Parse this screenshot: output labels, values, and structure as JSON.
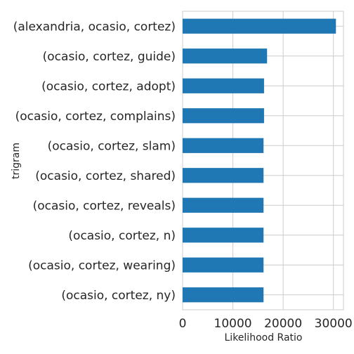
{
  "chart_data": {
    "type": "bar",
    "orientation": "horizontal",
    "categories": [
      "(alexandria, ocasio, cortez)",
      "(ocasio, cortez, guide)",
      "(ocasio, cortez, adopt)",
      "(ocasio, cortez, complains)",
      "(ocasio, cortez, slam)",
      "(ocasio, cortez, shared)",
      "(ocasio, cortez, reveals)",
      "(ocasio, cortez, n)",
      "(ocasio, cortez, wearing)",
      "(ocasio, cortez, ny)"
    ],
    "values": [
      30500,
      16800,
      16200,
      16200,
      16100,
      16100,
      16100,
      16100,
      16100,
      16100
    ],
    "xlabel": "Likelihood Ratio",
    "ylabel": "trigram",
    "xticks": [
      0,
      10000,
      20000,
      30000
    ],
    "xlim": [
      0,
      32000
    ],
    "grid": true,
    "bar_color": "#1f77b4",
    "grid_color": "#cccccc"
  }
}
